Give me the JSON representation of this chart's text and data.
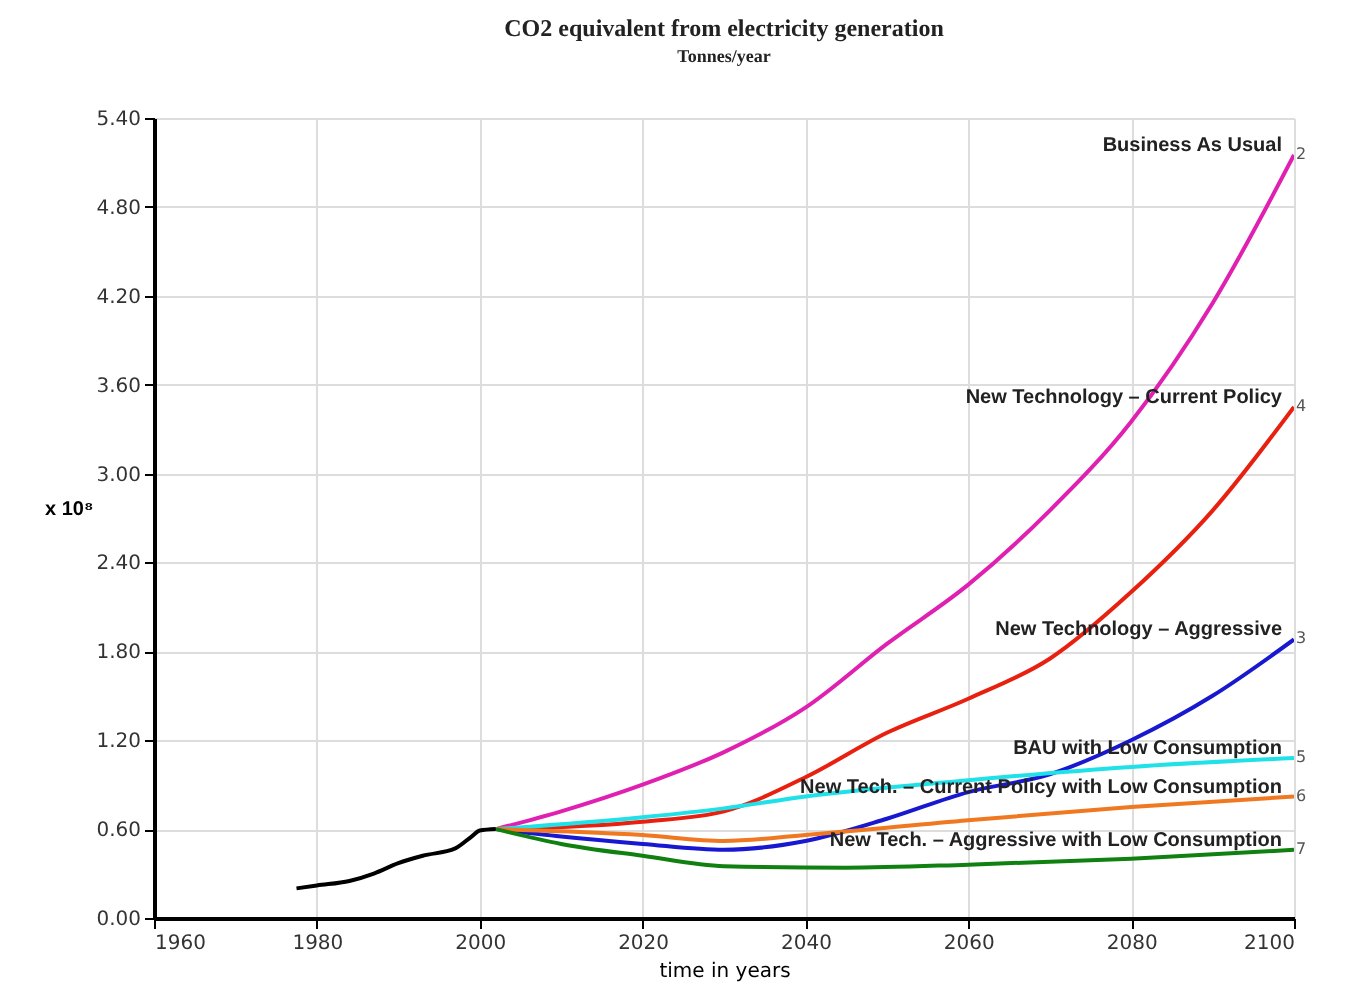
{
  "chart_data": {
    "type": "line",
    "title": "CO2 equivalent from electricity generation",
    "subtitle": "Tonnes/year",
    "xlabel": "time in years",
    "ylabel": "x 10⁸",
    "series": [
      {
        "color": "#000000",
        "x": [
          1977.5,
          1980,
          1984,
          1987,
          1990,
          1993,
          1997,
          1999,
          2000,
          2002
        ],
        "values": [
          0.2,
          0.22,
          0.25,
          0.3,
          0.37,
          0.42,
          0.47,
          0.55,
          0.59,
          0.6
        ]
      },
      {
        "name": "Business As Usual",
        "color": "#e020b0",
        "x": [
          2002,
          2010,
          2020,
          2030,
          2040,
          2050,
          2060,
          2070,
          2080,
          2090,
          2100
        ],
        "values": [
          0.6,
          0.72,
          0.9,
          1.12,
          1.42,
          1.85,
          2.25,
          2.75,
          3.35,
          4.15,
          5.15
        ]
      },
      {
        "name": "New Technology – Current Policy",
        "color": "#e82010",
        "x": [
          2002,
          2020,
          2030,
          2040,
          2050,
          2060,
          2070,
          2080,
          2090,
          2100
        ],
        "values": [
          0.6,
          0.65,
          0.72,
          0.95,
          1.25,
          1.48,
          1.75,
          2.2,
          2.75,
          3.45
        ]
      },
      {
        "name": "New Technology – Aggressive",
        "color": "#1818d0",
        "x": [
          2002,
          2010,
          2020,
          2030,
          2040,
          2050,
          2060,
          2070,
          2080,
          2090,
          2100
        ],
        "values": [
          0.6,
          0.55,
          0.5,
          0.46,
          0.52,
          0.67,
          0.85,
          0.97,
          1.2,
          1.5,
          1.88
        ]
      },
      {
        "name": "BAU with Low Consumption",
        "color": "#20e0e8",
        "x": [
          2002,
          2020,
          2030,
          2040,
          2060,
          2080,
          2100
        ],
        "values": [
          0.6,
          0.68,
          0.74,
          0.82,
          0.93,
          1.02,
          1.08
        ]
      },
      {
        "name": "New Tech. – Current Policy with Low Consumption",
        "color": "#f07820",
        "x": [
          2002,
          2020,
          2030,
          2040,
          2060,
          2080,
          2100
        ],
        "values": [
          0.6,
          0.56,
          0.52,
          0.56,
          0.66,
          0.75,
          0.82
        ]
      },
      {
        "name": "New Tech. – Aggressive with Low Consumption",
        "color": "#108010",
        "x": [
          2002,
          2010,
          2020,
          2030,
          2045,
          2060,
          2080,
          2100
        ],
        "values": [
          0.6,
          0.5,
          0.42,
          0.35,
          0.34,
          0.36,
          0.4,
          0.46
        ]
      }
    ],
    "annotations": [
      "2",
      "4",
      "3",
      "5",
      "6",
      "7"
    ],
    "xlim": [
      1960,
      2100
    ],
    "xticks": [
      1960,
      1980,
      2000,
      2020,
      2040,
      2060,
      2080,
      2100
    ],
    "ylim": [
      0,
      5.4
    ],
    "yticks": [
      {
        "value": 0,
        "label": "0.00"
      },
      {
        "value": 0.6,
        "label": "0.60"
      },
      {
        "value": 1.2,
        "label": "1.20"
      },
      {
        "value": 1.8,
        "label": "1.80"
      },
      {
        "value": 2.4,
        "label": "2.40"
      },
      {
        "value": 3,
        "label": "3.00"
      },
      {
        "value": 3.6,
        "label": "3.60"
      },
      {
        "value": 4.2,
        "label": "4.20"
      },
      {
        "value": 4.8,
        "label": "4.80"
      },
      {
        "value": 5.4,
        "label": "5.40"
      }
    ],
    "grid": true,
    "legend": false,
    "marker": "none",
    "line_style": "solid"
  }
}
